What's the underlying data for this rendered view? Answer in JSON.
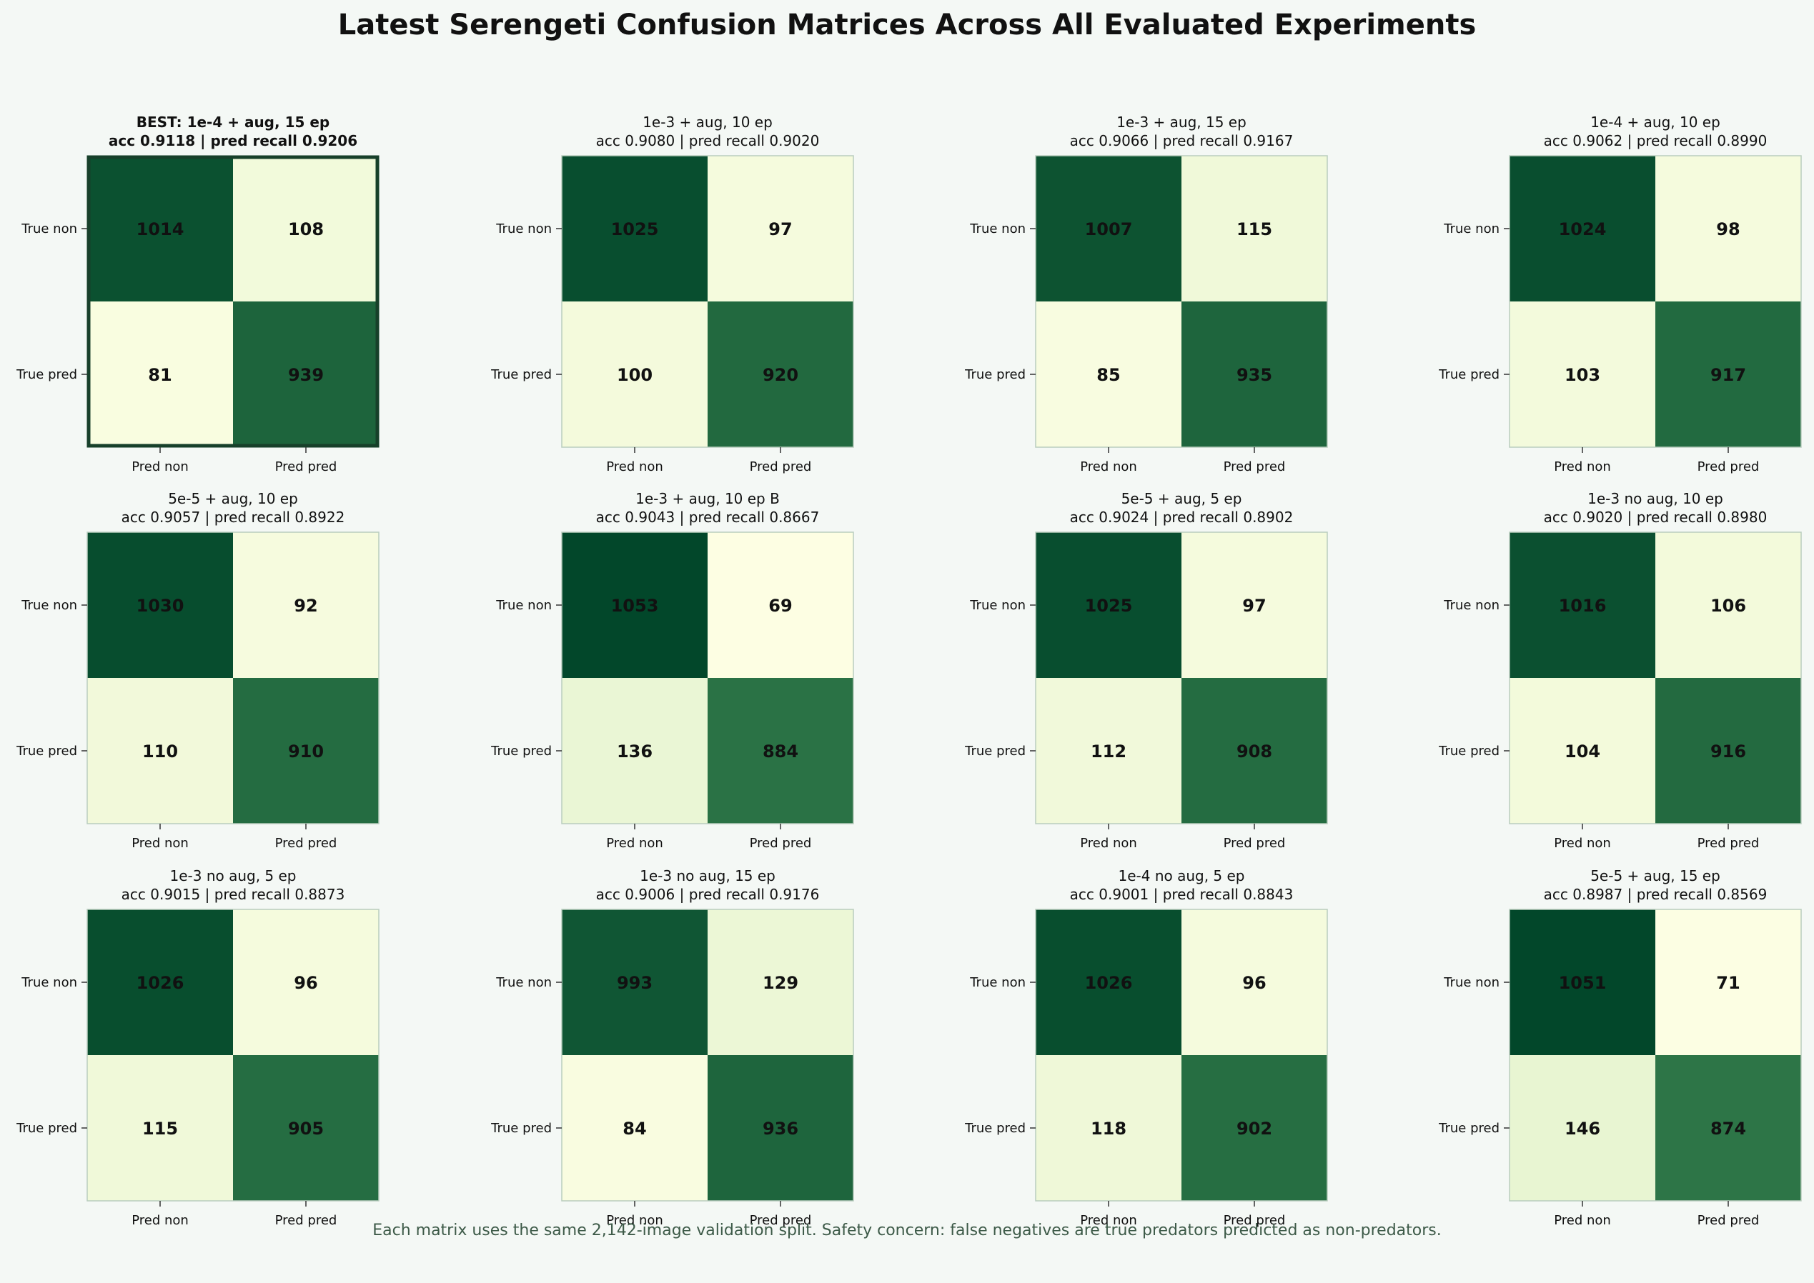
{
  "chart_data": {
    "type": "heatmap",
    "title": "Latest Serengeti Confusion Matrices Across All Evaluated Experiments",
    "footnote": "Each matrix uses the same 2,142-image validation split. Safety concern: false negatives are true predators predicted as non-predators.",
    "row_labels": [
      "True non",
      "True pred"
    ],
    "col_labels": [
      "Pred non",
      "Pred pred"
    ],
    "colormap": {
      "low": "#ffffe5",
      "mid": "#78c679",
      "high": "#004529",
      "vmin": 60,
      "vmax": 1060
    },
    "colors": {
      "best_border": "#17402a",
      "frame": "#b9cdbe"
    },
    "best_index": 0,
    "matrices": [
      {
        "title": "BEST: 1e-4 + aug, 15 ep",
        "subtitle": "acc 0.9118 | pred recall 0.9206",
        "values": [
          [
            1014,
            108
          ],
          [
            81,
            939
          ]
        ]
      },
      {
        "title": "1e-3 + aug, 10 ep",
        "subtitle": "acc 0.9080 | pred recall 0.9020",
        "values": [
          [
            1025,
            97
          ],
          [
            100,
            920
          ]
        ]
      },
      {
        "title": "1e-3 + aug, 15 ep",
        "subtitle": "acc 0.9066 | pred recall 0.9167",
        "values": [
          [
            1007,
            115
          ],
          [
            85,
            935
          ]
        ]
      },
      {
        "title": "1e-4 + aug, 10 ep",
        "subtitle": "acc 0.9062 | pred recall 0.8990",
        "values": [
          [
            1024,
            98
          ],
          [
            103,
            917
          ]
        ]
      },
      {
        "title": "5e-5 + aug, 10 ep",
        "subtitle": "acc 0.9057 | pred recall 0.8922",
        "values": [
          [
            1030,
            92
          ],
          [
            110,
            910
          ]
        ]
      },
      {
        "title": "1e-3 + aug, 10 ep B",
        "subtitle": "acc 0.9043 | pred recall 0.8667",
        "values": [
          [
            1053,
            69
          ],
          [
            136,
            884
          ]
        ]
      },
      {
        "title": "5e-5 + aug, 5 ep",
        "subtitle": "acc 0.9024 | pred recall 0.8902",
        "values": [
          [
            1025,
            97
          ],
          [
            112,
            908
          ]
        ]
      },
      {
        "title": "1e-3 no aug, 10 ep",
        "subtitle": "acc 0.9020 | pred recall 0.8980",
        "values": [
          [
            1016,
            106
          ],
          [
            104,
            916
          ]
        ]
      },
      {
        "title": "1e-3 no aug, 5 ep",
        "subtitle": "acc 0.9015 | pred recall 0.8873",
        "values": [
          [
            1026,
            96
          ],
          [
            115,
            905
          ]
        ]
      },
      {
        "title": "1e-3 no aug, 15 ep",
        "subtitle": "acc 0.9006 | pred recall 0.9176",
        "values": [
          [
            993,
            129
          ],
          [
            84,
            936
          ]
        ]
      },
      {
        "title": "1e-4 no aug, 5 ep",
        "subtitle": "acc 0.9001 | pred recall 0.8843",
        "values": [
          [
            1026,
            96
          ],
          [
            118,
            902
          ]
        ]
      },
      {
        "title": "5e-5 + aug, 15 ep",
        "subtitle": "acc 0.8987 | pred recall 0.8569",
        "values": [
          [
            1051,
            71
          ],
          [
            146,
            874
          ]
        ]
      }
    ]
  }
}
